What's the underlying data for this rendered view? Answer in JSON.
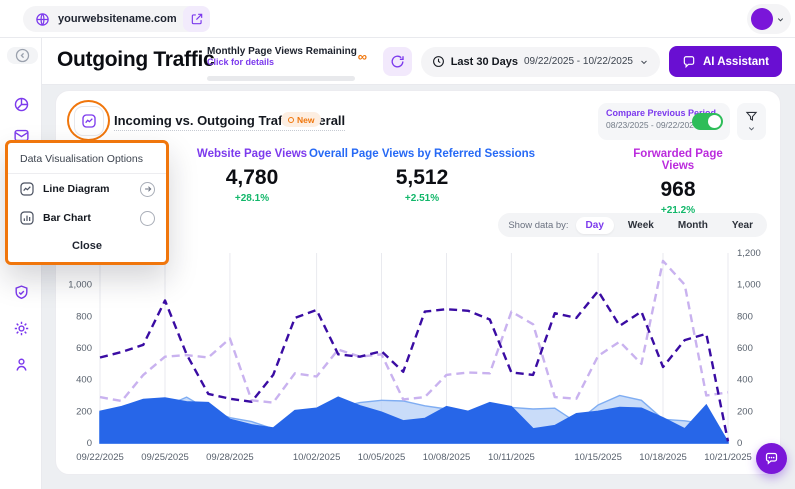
{
  "topbar": {
    "domain": "yourwebsitename.com"
  },
  "header": {
    "title": "Outgoing Traffic",
    "quota": {
      "label": "Monthly Page Views Remaining",
      "link": "Click for details",
      "value": "∞"
    },
    "period": {
      "label": "Last 30 Days",
      "range": "09/22/2025 - 10/22/2025"
    },
    "ai_button": "AI Assistant"
  },
  "panel": {
    "title": "Incoming vs. Outgoing Traffic Overall",
    "badge": "New",
    "compare": {
      "label": "Compare Previous Period",
      "range": "08/23/2025 - 09/22/2025",
      "enabled": "on"
    }
  },
  "stats": [
    {
      "label": "Website Page Views",
      "value": "4,780",
      "change": "+28.1%",
      "color": "#7c3aed"
    },
    {
      "label": "Overall Page Views by Referred Sessions",
      "value": "5,512",
      "change": "+2.51%",
      "color": "#2669f5"
    },
    {
      "label": "Forwarded Page Views",
      "value": "968",
      "change": "+21.2%",
      "color": "#bb2bdd"
    }
  ],
  "popup": {
    "title": "Data Visualisation Options",
    "options": [
      {
        "label": "Line Diagram"
      },
      {
        "label": "Bar Chart"
      }
    ],
    "close": "Close"
  },
  "show_data_by": {
    "label": "Show data by:",
    "tabs": [
      "Day",
      "Week",
      "Month",
      "Year"
    ],
    "active": "Day"
  },
  "chart_data": {
    "type": "line",
    "x_tick_labels": [
      "09/22/2025",
      "09/25/2025",
      "09/28/2025",
      "10/02/2025",
      "10/05/2025",
      "10/08/2025",
      "10/11/2025",
      "10/15/2025",
      "10/18/2025",
      "10/21/2025"
    ],
    "x_tick_indices": [
      0,
      3,
      6,
      10,
      13,
      16,
      19,
      23,
      26,
      29
    ],
    "n_points": 30,
    "y_max": 1200,
    "left_axis_ticks": [
      "1,000",
      "800",
      "600",
      "400",
      "200",
      "0"
    ],
    "right_axis_ticks": [
      "1,200",
      "1,000",
      "800",
      "600",
      "400",
      "200",
      "0"
    ],
    "grid": "vertical-only",
    "legend": "none",
    "series": [
      {
        "name": "light-blue-area",
        "style": "area",
        "color": "#bcd3f8",
        "opacity": 0.8,
        "stroke": "#7fadf2",
        "values": [
          190,
          220,
          250,
          230,
          290,
          210,
          160,
          135,
          90,
          195,
          210,
          225,
          255,
          270,
          265,
          235,
          215,
          190,
          235,
          225,
          215,
          220,
          130,
          240,
          300,
          270,
          150,
          140,
          120,
          10
        ]
      },
      {
        "name": "blue-area",
        "style": "area",
        "color": "#2766e8",
        "opacity": 1,
        "stroke": "#2766e8",
        "values": [
          200,
          230,
          275,
          285,
          260,
          255,
          150,
          115,
          95,
          205,
          220,
          290,
          235,
          195,
          140,
          155,
          230,
          200,
          255,
          230,
          90,
          110,
          185,
          200,
          225,
          220,
          160,
          90,
          240,
          5
        ]
      },
      {
        "name": "lavender-dashed-line",
        "style": "dashed",
        "color": "#c9b2ef",
        "values": [
          290,
          265,
          430,
          545,
          555,
          540,
          660,
          270,
          255,
          440,
          420,
          590,
          545,
          560,
          275,
          290,
          430,
          445,
          440,
          830,
          750,
          290,
          280,
          550,
          640,
          500,
          1150,
          1000,
          300,
          320
        ]
      },
      {
        "name": "dark-indigo-dashed-line",
        "style": "dashed",
        "color": "#3a0ca3",
        "values": [
          540,
          575,
          620,
          900,
          560,
          310,
          280,
          260,
          430,
          790,
          840,
          560,
          545,
          580,
          450,
          830,
          845,
          835,
          780,
          445,
          430,
          820,
          790,
          960,
          740,
          830,
          480,
          650,
          690,
          10
        ]
      }
    ]
  },
  "colors": {
    "accent_purple": "#7c3aed",
    "button_purple": "#690fd2",
    "toggle_green": "#2ebd59",
    "positive_green": "#12b76a",
    "highlight_orange": "#f0760c",
    "area_blue": "#2766e8",
    "area_light_blue": "#bcd3f8",
    "line_indigo": "#3a0ca3",
    "line_lavender": "#c9b2ef"
  }
}
